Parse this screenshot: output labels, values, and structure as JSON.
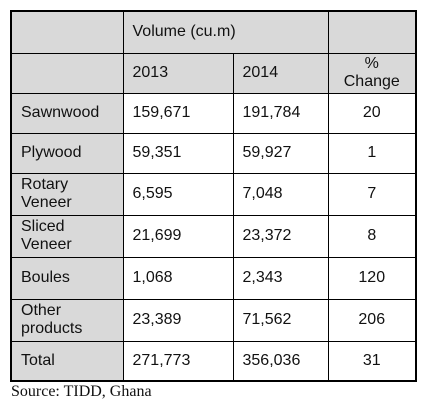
{
  "table": {
    "group_header": "Volume (cu.m)",
    "columns": [
      "2013",
      "2014",
      "% Change"
    ],
    "rows": [
      [
        "Sawnwood",
        "159,671",
        "191,784",
        "20"
      ],
      [
        "Plywood",
        "59,351",
        "59,927",
        "1"
      ],
      [
        "Rotary Veneer",
        "6,595",
        "7,048",
        "7"
      ],
      [
        "Sliced Veneer",
        "21,699",
        "23,372",
        "8"
      ],
      [
        "Boules",
        "1,068",
        "2,343",
        "120"
      ],
      [
        "Other products",
        "23,389",
        "71,562",
        "206"
      ],
      [
        "Total",
        "271,773",
        "356,036",
        "31"
      ]
    ]
  },
  "source": "Source: TIDD, Ghana"
}
